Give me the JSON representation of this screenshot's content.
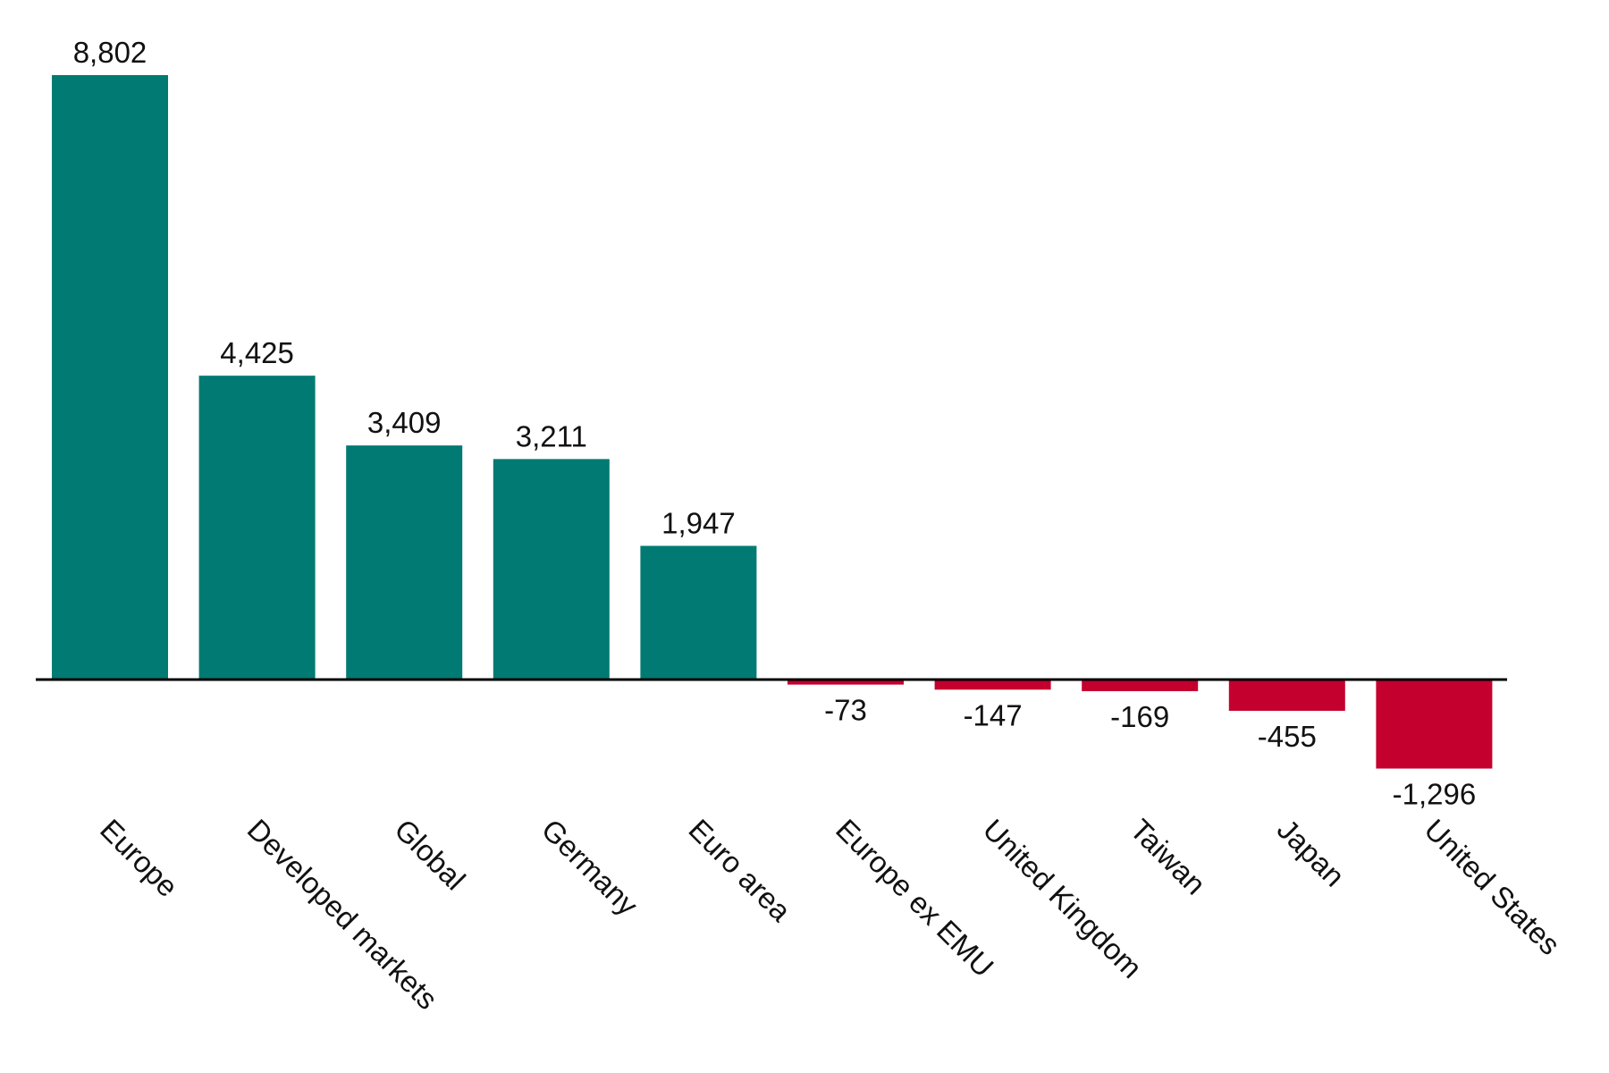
{
  "chart_data": {
    "type": "bar",
    "categories": [
      "Europe",
      "Developed markets",
      "Global",
      "Germany",
      "Euro area",
      "Europe ex EMU",
      "United Kingdom",
      "Taiwan",
      "Japan",
      "United States"
    ],
    "values": [
      8802,
      4425,
      3409,
      3211,
      1947,
      -73,
      -147,
      -169,
      -455,
      -1296
    ],
    "value_labels": [
      "8,802",
      "4,425",
      "3,409",
      "3,211",
      "1,947",
      "-73",
      "-147",
      "-169",
      "-455",
      "-1,296"
    ],
    "title": "",
    "xlabel": "",
    "ylabel": "",
    "ylim": [
      -1296,
      8802
    ],
    "grid": false,
    "legend": "none",
    "colors": {
      "positive": "#007A72",
      "negative": "#C4002F",
      "axis": "#000000",
      "text": "#111111"
    }
  }
}
